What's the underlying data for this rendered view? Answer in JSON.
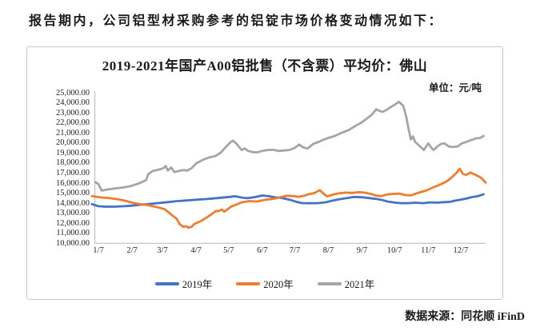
{
  "page": {
    "intro_text": "报告期内，公司铝型材采购参考的铝锭市场价格变动情况如下：",
    "source_text": "数据来源：同花顺 iFinD"
  },
  "chart": {
    "title": "2019-2021年国产A00铝批售（不含票）平均价：佛山",
    "unit_label": "单位：元/吨",
    "axis_color": "#bfbfbf",
    "y_tick_labels": [
      "25,000.00",
      "24,000.00",
      "23,000.00",
      "22,000.00",
      "21,000.00",
      "20,000.00",
      "19,000.00",
      "18,000.00",
      "17,000.00",
      "16,000.00",
      "15,000.00",
      "14,000.00",
      "13,000.00",
      "12,000.00",
      "11,000.00",
      "10,000.00"
    ],
    "x_tick_labels": [
      "1/7",
      "2/7",
      "3/7",
      "4/7",
      "5/7",
      "6/7",
      "7/7",
      "8/7",
      "9/7",
      "10/7",
      "11/7",
      "12/7"
    ],
    "legend": [
      {
        "label": "2019年",
        "color": "#4472C4"
      },
      {
        "label": "2020年",
        "color": "#ED7D31"
      },
      {
        "label": "2021年",
        "color": "#A5A5A5"
      }
    ]
  },
  "chart_data": {
    "type": "line",
    "title": "2019-2021年国产A00铝批售（不含票）平均价：佛山",
    "ylabel": "元/吨",
    "ylim": [
      10000,
      25000
    ],
    "y_tick_step": 1000,
    "x_axis_note": "月/日，1月至12月（每月7日为刻度）",
    "x_tick_days": [
      6,
      37,
      65,
      96,
      126,
      157,
      187,
      218,
      249,
      279,
      310,
      340
    ],
    "grid": false,
    "legend_position": "bottom",
    "series": [
      {
        "name": "2019年",
        "color": "#4472C4",
        "points": [
          [
            0,
            13900
          ],
          [
            6,
            13700
          ],
          [
            12,
            13650
          ],
          [
            20,
            13650
          ],
          [
            30,
            13700
          ],
          [
            37,
            13750
          ],
          [
            45,
            13850
          ],
          [
            52,
            13900
          ],
          [
            60,
            14000
          ],
          [
            70,
            14100
          ],
          [
            78,
            14200
          ],
          [
            88,
            14280
          ],
          [
            96,
            14340
          ],
          [
            104,
            14400
          ],
          [
            112,
            14470
          ],
          [
            120,
            14550
          ],
          [
            127,
            14620
          ],
          [
            132,
            14690
          ],
          [
            138,
            14560
          ],
          [
            143,
            14490
          ],
          [
            150,
            14600
          ],
          [
            157,
            14760
          ],
          [
            163,
            14690
          ],
          [
            168,
            14600
          ],
          [
            175,
            14520
          ],
          [
            182,
            14350
          ],
          [
            188,
            14150
          ],
          [
            194,
            14000
          ],
          [
            200,
            13990
          ],
          [
            208,
            14000
          ],
          [
            215,
            14080
          ],
          [
            222,
            14250
          ],
          [
            228,
            14380
          ],
          [
            235,
            14500
          ],
          [
            242,
            14620
          ],
          [
            250,
            14580
          ],
          [
            256,
            14500
          ],
          [
            262,
            14420
          ],
          [
            268,
            14300
          ],
          [
            273,
            14150
          ],
          [
            280,
            14050
          ],
          [
            285,
            14000
          ],
          [
            292,
            14000
          ],
          [
            298,
            14050
          ],
          [
            305,
            14000
          ],
          [
            312,
            14080
          ],
          [
            318,
            14050
          ],
          [
            325,
            14100
          ],
          [
            330,
            14130
          ],
          [
            335,
            14250
          ],
          [
            340,
            14340
          ],
          [
            345,
            14450
          ],
          [
            350,
            14600
          ],
          [
            356,
            14700
          ],
          [
            361,
            14880
          ]
        ]
      },
      {
        "name": "2020年",
        "color": "#ED7D31",
        "points": [
          [
            0,
            14700
          ],
          [
            8,
            14570
          ],
          [
            16,
            14500
          ],
          [
            24,
            14380
          ],
          [
            30,
            14250
          ],
          [
            37,
            14050
          ],
          [
            44,
            13900
          ],
          [
            50,
            13820
          ],
          [
            56,
            13700
          ],
          [
            62,
            13550
          ],
          [
            67,
            13400
          ],
          [
            71,
            13050
          ],
          [
            75,
            12700
          ],
          [
            78,
            12450
          ],
          [
            81,
            11900
          ],
          [
            84,
            11650
          ],
          [
            87,
            11700
          ],
          [
            89,
            11550
          ],
          [
            92,
            11650
          ],
          [
            94,
            11900
          ],
          [
            101,
            12250
          ],
          [
            109,
            12800
          ],
          [
            114,
            13200
          ],
          [
            117,
            13230
          ],
          [
            120,
            13350
          ],
          [
            122,
            13150
          ],
          [
            129,
            13700
          ],
          [
            133,
            13850
          ],
          [
            138,
            14080
          ],
          [
            145,
            14210
          ],
          [
            152,
            14160
          ],
          [
            160,
            14340
          ],
          [
            167,
            14430
          ],
          [
            174,
            14600
          ],
          [
            180,
            14740
          ],
          [
            186,
            14700
          ],
          [
            190,
            14620
          ],
          [
            196,
            14750
          ],
          [
            200,
            14900
          ],
          [
            205,
            15000
          ],
          [
            210,
            15300
          ],
          [
            214,
            14900
          ],
          [
            217,
            14680
          ],
          [
            222,
            14850
          ],
          [
            228,
            14980
          ],
          [
            234,
            15050
          ],
          [
            240,
            15020
          ],
          [
            246,
            15100
          ],
          [
            251,
            15050
          ],
          [
            256,
            14950
          ],
          [
            262,
            14750
          ],
          [
            267,
            14700
          ],
          [
            272,
            14870
          ],
          [
            278,
            14920
          ],
          [
            284,
            14950
          ],
          [
            289,
            14800
          ],
          [
            294,
            14770
          ],
          [
            300,
            15000
          ],
          [
            308,
            15250
          ],
          [
            314,
            15550
          ],
          [
            320,
            15800
          ],
          [
            326,
            16100
          ],
          [
            331,
            16500
          ],
          [
            336,
            17000
          ],
          [
            339,
            17430
          ],
          [
            342,
            16900
          ],
          [
            345,
            16820
          ],
          [
            349,
            17050
          ],
          [
            352,
            16900
          ],
          [
            356,
            16700
          ],
          [
            359,
            16500
          ],
          [
            363,
            16050
          ]
        ]
      },
      {
        "name": "2021年",
        "color": "#A5A5A5",
        "points": [
          [
            3,
            16100
          ],
          [
            6,
            15900
          ],
          [
            9,
            15250
          ],
          [
            14,
            15350
          ],
          [
            20,
            15450
          ],
          [
            28,
            15550
          ],
          [
            36,
            15700
          ],
          [
            44,
            16000
          ],
          [
            50,
            16300
          ],
          [
            52,
            16900
          ],
          [
            56,
            17200
          ],
          [
            62,
            17350
          ],
          [
            66,
            17500
          ],
          [
            68,
            17700
          ],
          [
            70,
            17250
          ],
          [
            73,
            17550
          ],
          [
            76,
            17100
          ],
          [
            80,
            17200
          ],
          [
            84,
            17300
          ],
          [
            88,
            17250
          ],
          [
            92,
            17500
          ],
          [
            96,
            17950
          ],
          [
            102,
            18300
          ],
          [
            108,
            18550
          ],
          [
            114,
            18700
          ],
          [
            119,
            19050
          ],
          [
            123,
            19550
          ],
          [
            128,
            20100
          ],
          [
            130,
            20230
          ],
          [
            133,
            19950
          ],
          [
            138,
            19300
          ],
          [
            141,
            19450
          ],
          [
            144,
            19200
          ],
          [
            148,
            19100
          ],
          [
            152,
            19050
          ],
          [
            157,
            19200
          ],
          [
            162,
            19300
          ],
          [
            167,
            19320
          ],
          [
            172,
            19200
          ],
          [
            177,
            19250
          ],
          [
            182,
            19300
          ],
          [
            187,
            19500
          ],
          [
            191,
            19840
          ],
          [
            195,
            19550
          ],
          [
            199,
            19450
          ],
          [
            204,
            19900
          ],
          [
            209,
            20100
          ],
          [
            214,
            20350
          ],
          [
            218,
            20500
          ],
          [
            224,
            20700
          ],
          [
            230,
            21000
          ],
          [
            237,
            21300
          ],
          [
            243,
            21700
          ],
          [
            248,
            22000
          ],
          [
            253,
            22400
          ],
          [
            258,
            22800
          ],
          [
            262,
            23350
          ],
          [
            265,
            23200
          ],
          [
            268,
            23100
          ],
          [
            272,
            23300
          ],
          [
            275,
            23550
          ],
          [
            279,
            23800
          ],
          [
            283,
            24100
          ],
          [
            287,
            23700
          ],
          [
            290,
            22500
          ],
          [
            292,
            21300
          ],
          [
            294,
            20350
          ],
          [
            296,
            20650
          ],
          [
            298,
            20100
          ],
          [
            302,
            19700
          ],
          [
            306,
            19300
          ],
          [
            310,
            19950
          ],
          [
            313,
            19500
          ],
          [
            315,
            19300
          ],
          [
            319,
            19700
          ],
          [
            322,
            19900
          ],
          [
            325,
            19950
          ],
          [
            329,
            19650
          ],
          [
            333,
            19600
          ],
          [
            337,
            19650
          ],
          [
            341,
            19950
          ],
          [
            345,
            20100
          ],
          [
            349,
            20250
          ],
          [
            354,
            20450
          ],
          [
            358,
            20500
          ],
          [
            361,
            20700
          ]
        ]
      }
    ]
  }
}
